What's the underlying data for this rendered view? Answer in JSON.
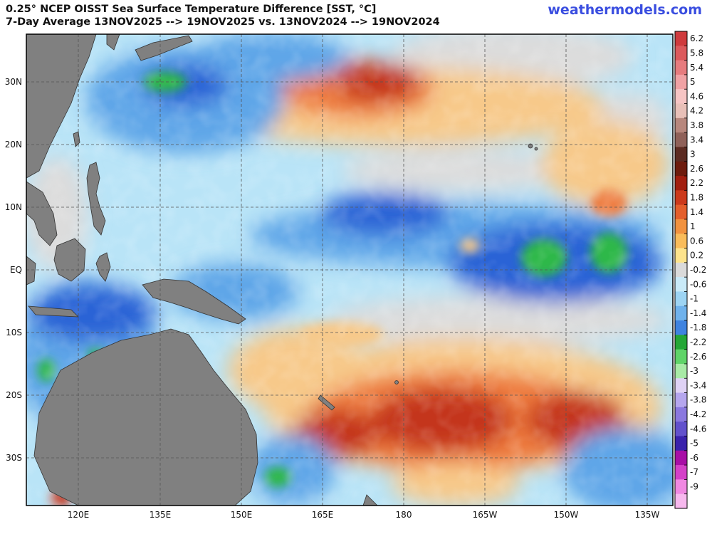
{
  "header": {
    "title_line1": "0.25° NCEP OISST Sea Surface Temperature Difference [SST, °C]",
    "title_line2": "7-Day Average 13NOV2025 --> 19NOV2025  vs. 13NOV2024 --> 19NOV2024",
    "brand": "weathermodels.com"
  },
  "map": {
    "lat_labels": [
      "30N",
      "20N",
      "10N",
      "EQ",
      "10S",
      "20S",
      "30S"
    ],
    "lon_labels": [
      "120E",
      "135E",
      "150E",
      "165E",
      "180",
      "165W",
      "150W",
      "135W"
    ],
    "colors": {
      "land": "#808080",
      "near_zero": "#dcdcdc",
      "warm": "#f7c98a",
      "warmer": "#ee7a3e",
      "hot": "#c4361b",
      "cool": "#b9e4f7",
      "cooler": "#5fa6e8",
      "cold": "#2a63d6",
      "very_cold": "#2fb84a"
    }
  },
  "colorbar": {
    "labels": [
      "6.2",
      "5.8",
      "5.4",
      "5",
      "4.6",
      "4.2",
      "3.8",
      "3.4",
      "3",
      "2.6",
      "2.2",
      "1.8",
      "1.4",
      "1",
      "0.6",
      "0.2",
      "-0.2",
      "-0.6",
      "-1",
      "-1.4",
      "-1.8",
      "-2.2",
      "-2.6",
      "-3",
      "-3.4",
      "-3.8",
      "-4.2",
      "-4.6",
      "-5",
      "-6",
      "-7",
      "-9"
    ],
    "colors": [
      "#cf3b3d",
      "#dc5a5c",
      "#e67c7e",
      "#f0a2a4",
      "#f6c5c4",
      "#e8c0b8",
      "#b7877d",
      "#8f6159",
      "#5c2b22",
      "#6e1c0e",
      "#a21f10",
      "#cc3a1c",
      "#e45f2c",
      "#f1923f",
      "#f9bc5a",
      "#fde38c",
      "#dadada",
      "#c9eaf8",
      "#9dd4f3",
      "#6fb2ec",
      "#3f83e0",
      "#24a736",
      "#5fd468",
      "#a8eaa6",
      "#dfd2f5",
      "#b5a6ee",
      "#8a78df",
      "#6251cc",
      "#3a22ac",
      "#a80ea6",
      "#d440c8",
      "#f088e2",
      "#f7b8ee"
    ]
  }
}
